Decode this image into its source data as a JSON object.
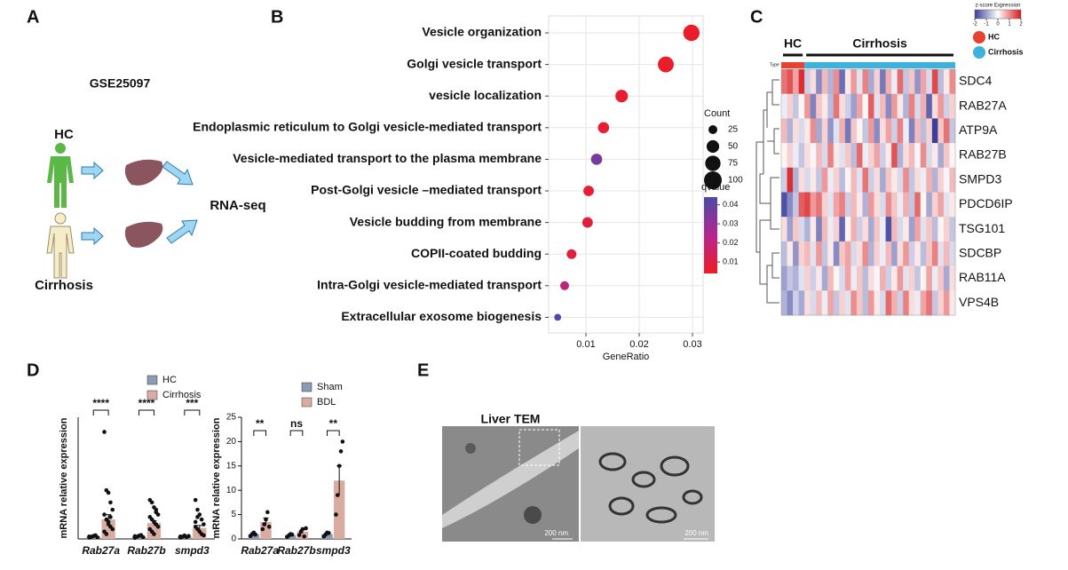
{
  "panels": {
    "a": "A",
    "b": "B",
    "c": "C",
    "d": "D",
    "e": "E"
  },
  "panel_a": {
    "dataset": "GSE25097",
    "groups": [
      "HC",
      "Cirrhosis"
    ],
    "method": "RNA-seq"
  },
  "chart_data": [
    {
      "type": "scatter",
      "categories": [
        "Vesicle organization",
        "Golgi vesicle transport",
        "vesicle localization",
        "Endoplasmic reticulum to Golgi vesicle-mediated transport",
        "Vesicle-mediated transport to the plasma membrane",
        "Post-Golgi vesicle –mediated transport",
        "Vesicle budding from membrane",
        "COPII-coated budding",
        "Intra-Golgi vesicle-mediated transport",
        "Extracellular exosome biogenesis"
      ],
      "x": [
        0.0298,
        0.025,
        0.0167,
        0.0133,
        0.012,
        0.0105,
        0.0103,
        0.0073,
        0.006,
        0.0047
      ],
      "size": [
        85,
        80,
        50,
        40,
        40,
        35,
        35,
        30,
        25,
        15
      ],
      "color_values": [
        0.005,
        0.005,
        0.006,
        0.007,
        0.035,
        0.007,
        0.008,
        0.009,
        0.02,
        0.042
      ],
      "xlabel": "GeneRatio",
      "xlim": [
        0.003,
        0.032
      ],
      "xticks": [
        0.01,
        0.02,
        0.03
      ],
      "size_label": "Count",
      "size_ticks": [
        25,
        50,
        75,
        100
      ],
      "color_label": "qvalue",
      "clim": [
        0.004,
        0.044
      ],
      "color_ticks": [
        0.01,
        0.02,
        0.03,
        0.04
      ],
      "colors": [
        "#ee1c25",
        "#b5268f",
        "#4a4ba6"
      ],
      "grid": true
    },
    {
      "type": "heatmap",
      "title": "z-score Expression",
      "type_label": "Type",
      "rows": [
        "SDC4",
        "RAB27A",
        "ATP9A",
        "RAB27B",
        "SMPD3",
        "PDCD6IP",
        "TSG101",
        "SDCBP",
        "RAB11A",
        "VPS4B"
      ],
      "groups": [
        {
          "name": "HC",
          "color": "#e8412f",
          "columns": 4
        },
        {
          "name": "Cirrhosis",
          "color": "#3cb2dc",
          "columns": 26
        }
      ],
      "clim": [
        -2,
        2
      ],
      "cticks": [
        -2,
        -1,
        0,
        1,
        2
      ],
      "colors": [
        "#3a3f9c",
        "#ffffff",
        "#d7191c"
      ],
      "values": [
        [
          1.2,
          1.5,
          0.8,
          1.8,
          -0.5,
          0.3,
          -1.2,
          0.6,
          -0.8,
          1.0,
          -1.5,
          0.2,
          0.9,
          -0.3,
          1.1,
          -0.9,
          0.4,
          -1.4,
          0.7,
          -0.2,
          1.3,
          -0.6,
          0.5,
          -1.1,
          0.8,
          -0.4,
          1.6,
          -0.7,
          0.2,
          1.0
        ],
        [
          -0.2,
          0.4,
          -0.6,
          0.1,
          0.9,
          -1.3,
          0.5,
          0.2,
          -0.7,
          1.2,
          0.3,
          -0.5,
          -1.0,
          0.8,
          0.1,
          1.4,
          -0.3,
          0.6,
          -1.2,
          0.9,
          0.2,
          -0.8,
          1.1,
          -0.4,
          0.7,
          -1.6,
          0.3,
          0.9,
          -0.5,
          0.4
        ],
        [
          0.6,
          -0.8,
          0.3,
          -0.4,
          0.2,
          1.0,
          -0.9,
          0.4,
          -1.1,
          -0.3,
          0.7,
          -1.4,
          0.5,
          0.1,
          -0.6,
          0.9,
          -1.2,
          0.3,
          0.8,
          -0.5,
          1.1,
          -0.2,
          -1.3,
          0.6,
          -0.7,
          0.4,
          -2.0,
          0.5,
          1.2,
          -0.6
        ],
        [
          0.1,
          0.4,
          -0.2,
          -0.6,
          0.3,
          -0.1,
          0.6,
          -0.4,
          1.1,
          0.2,
          -0.3,
          0.5,
          -0.7,
          1.3,
          -0.2,
          0.4,
          0.8,
          -0.5,
          0.2,
          1.5,
          -0.8,
          0.3,
          0.6,
          -0.1,
          1.0,
          -0.4,
          0.2,
          -0.9,
          0.5,
          0.1
        ],
        [
          -0.5,
          1.8,
          -0.8,
          0.3,
          -0.4,
          0.2,
          -0.6,
          0.9,
          -0.2,
          0.4,
          -0.7,
          0.1,
          0.6,
          -0.3,
          1.2,
          -0.5,
          0.3,
          -0.9,
          0.5,
          0.2,
          -0.4,
          1.0,
          -0.6,
          0.3,
          -0.2,
          0.7,
          -0.8,
          0.4,
          -0.1,
          0.6
        ],
        [
          -1.8,
          -1.2,
          -0.6,
          1.4,
          1.6,
          0.9,
          1.2,
          0.4,
          -0.3,
          0.8,
          1.1,
          -0.5,
          0.6,
          0.2,
          -0.8,
          0.9,
          0.3,
          -0.4,
          1.0,
          0.5,
          -0.2,
          0.7,
          -0.6,
          1.3,
          0.1,
          -0.9,
          0.4,
          0.8,
          -0.3,
          0.2
        ],
        [
          0.3,
          -1.0,
          0.5,
          -0.4,
          -0.8,
          0.2,
          -1.3,
          0.6,
          -0.2,
          0.4,
          -1.6,
          0.1,
          0.7,
          -0.5,
          0.3,
          -0.9,
          0.5,
          -0.2,
          -1.8,
          0.6,
          -0.4,
          0.2,
          -1.0,
          0.8,
          -0.3,
          0.5,
          -0.7,
          0.1,
          0.4,
          -0.6
        ],
        [
          -0.7,
          0.2,
          -1.1,
          0.4,
          0.6,
          -0.3,
          0.9,
          -0.6,
          0.2,
          -1.2,
          0.5,
          0.8,
          -0.4,
          0.3,
          1.0,
          -0.8,
          0.4,
          -0.2,
          0.6,
          -1.0,
          0.3,
          0.9,
          -0.5,
          0.2,
          -0.7,
          0.5,
          1.1,
          -0.3,
          0.6,
          -0.4
        ],
        [
          -1.0,
          -0.6,
          -0.8,
          -0.3,
          0.4,
          -0.5,
          0.2,
          -0.9,
          0.6,
          0.1,
          -0.4,
          0.8,
          -0.2,
          0.5,
          -0.7,
          0.3,
          -0.1,
          0.7,
          -0.5,
          0.2,
          0.9,
          -0.3,
          0.4,
          -0.6,
          0.1,
          0.8,
          -0.2,
          0.5,
          -0.9,
          0.3
        ],
        [
          -0.8,
          -1.2,
          -0.5,
          -0.9,
          0.3,
          -0.4,
          0.6,
          -0.2,
          0.8,
          -0.6,
          0.4,
          -0.3,
          1.0,
          0.5,
          -0.7,
          0.9,
          0.2,
          -0.4,
          1.3,
          0.7,
          -0.5,
          1.1,
          0.3,
          -0.2,
          0.8,
          1.2,
          -0.6,
          0.4,
          0.9,
          0.2
        ]
      ]
    },
    {
      "type": "bar",
      "categories": [
        "Rab27a",
        "Rab27b",
        "smpd3"
      ],
      "ylabel": "mRNA relative expression",
      "ylim": [
        0,
        50
      ],
      "series": [
        {
          "name": "HC",
          "color": "#8a9bb5",
          "values": [
            1,
            1,
            1
          ],
          "errors": [
            0.3,
            0.3,
            0.3
          ],
          "points": [
            [
              0.5,
              0.8,
              1.2,
              1.5,
              0.6,
              1.0,
              0.9
            ],
            [
              0.4,
              0.9,
              1.3,
              1.6,
              0.7,
              1.1
            ],
            [
              0.5,
              0.9,
              1.4,
              0.7,
              1.2,
              1.0
            ]
          ]
        },
        {
          "name": "Cirrhosis",
          "color": "#d9aba1",
          "values": [
            8,
            6.5,
            4.5
          ],
          "errors": [
            2,
            1,
            1
          ],
          "points": [
            [
              44,
              20,
              19,
              15,
              12,
              10,
              8,
              6,
              5,
              4,
              3,
              2,
              7,
              9
            ],
            [
              16,
              15,
              13,
              12,
              10,
              9,
              8,
              7,
              6,
              5,
              4,
              3,
              2,
              11
            ],
            [
              16,
              12,
              10,
              8,
              6,
              5,
              4,
              3,
              2,
              1.5,
              7,
              9
            ]
          ]
        }
      ],
      "significance": [
        "****",
        "****",
        "***"
      ]
    },
    {
      "type": "bar",
      "categories": [
        "Rab27a",
        "Rab27b",
        "smpd3"
      ],
      "ylabel": "mRNA relative expression",
      "ylim": [
        0,
        25
      ],
      "yticks": [
        0,
        5,
        10,
        15,
        20,
        25
      ],
      "series": [
        {
          "name": "Sham",
          "color": "#8a9bb5",
          "values": [
            1,
            0.8,
            1
          ],
          "errors": [
            0.2,
            0.2,
            0.2
          ],
          "points": [
            [
              0.6,
              1.0,
              1.3,
              0.9
            ],
            [
              0.4,
              0.7,
              1.0,
              0.9
            ],
            [
              0.5,
              0.9,
              1.3,
              1.2
            ]
          ]
        },
        {
          "name": "BDL",
          "color": "#d9aba1",
          "values": [
            3.5,
            1.5,
            12
          ],
          "errors": [
            0.8,
            0.4,
            3
          ],
          "points": [
            [
              2,
              3,
              4,
              5.5,
              2.5
            ],
            [
              0.8,
              1.5,
              2,
              0.5,
              2.2
            ],
            [
              5,
              9,
              15,
              18,
              20
            ]
          ]
        }
      ],
      "significance": [
        "**",
        "ns",
        "**"
      ]
    }
  ],
  "panel_e": {
    "title": "Liver TEM",
    "scale_bars": [
      "200 nm",
      "200 nm"
    ]
  }
}
